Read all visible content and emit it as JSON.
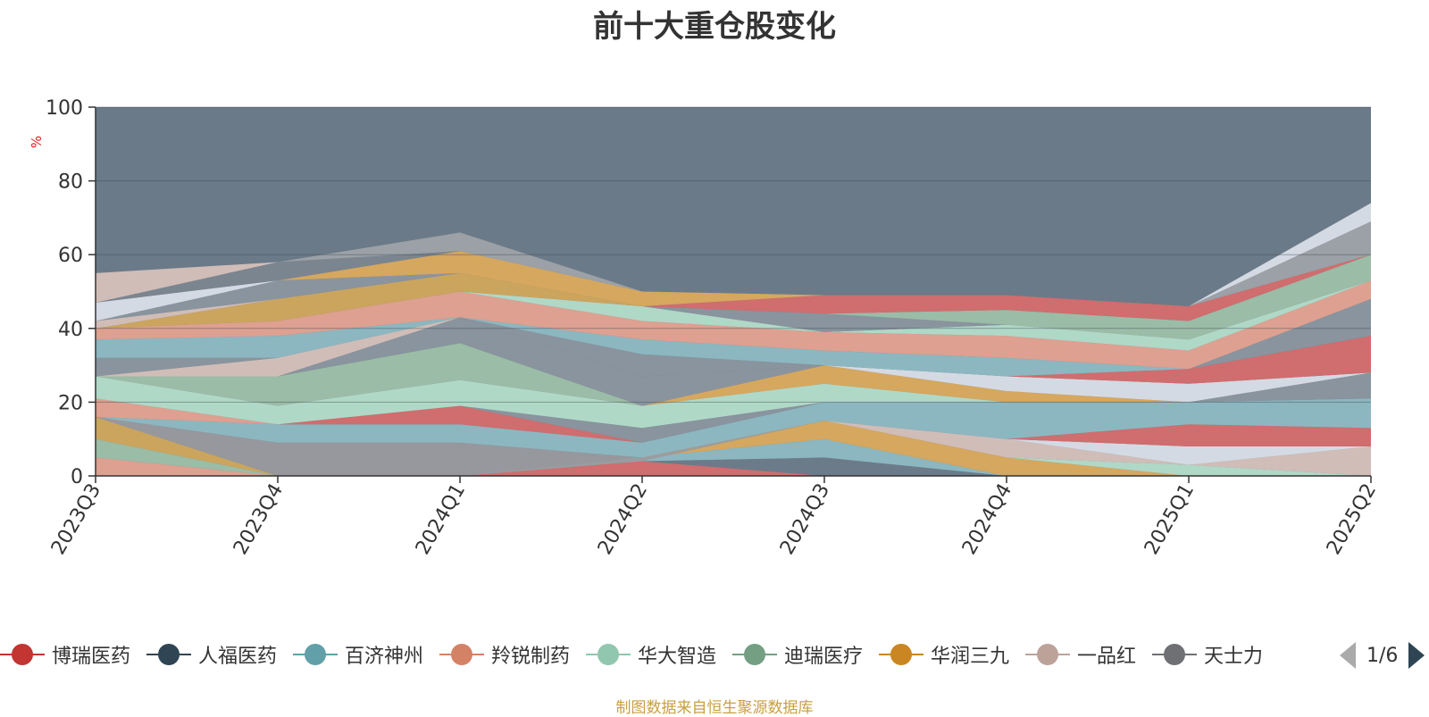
{
  "title": "前十大重仓股变化",
  "source_note": "制图数据来自恒生聚源数据库",
  "pager": {
    "text": "1/6"
  },
  "chart_data": {
    "type": "area",
    "ylabel": "%",
    "ylim": [
      0,
      100
    ],
    "yticks": [
      0,
      20,
      40,
      60,
      80,
      100
    ],
    "categories": [
      "2023Q3",
      "2023Q4",
      "2024Q1",
      "2024Q2",
      "2024Q3",
      "2024Q4",
      "2025Q1",
      "2025Q2"
    ],
    "background_color": "#6b7a88",
    "bands": [
      {
        "color": "#e8a390",
        "lower": [
          0,
          0,
          0,
          4,
          0,
          0,
          0,
          0
        ],
        "upper": [
          5,
          0,
          0,
          4,
          0,
          0,
          0,
          0
        ]
      },
      {
        "color": "#9fc1a8",
        "lower": [
          5,
          0,
          0,
          4,
          0,
          0,
          0,
          0
        ],
        "upper": [
          10,
          0,
          0,
          4,
          0,
          0,
          0,
          0
        ]
      },
      {
        "color": "#d4a85a",
        "lower": [
          10,
          0,
          0,
          4,
          0,
          0,
          0,
          0
        ],
        "upper": [
          16,
          0,
          0,
          4,
          0,
          0,
          0,
          0
        ]
      },
      {
        "color": "#d96b6b",
        "lower": [
          0,
          0,
          0,
          0,
          0,
          0,
          0,
          0
        ],
        "upper": [
          0,
          0,
          0,
          4,
          0,
          0,
          0,
          0
        ]
      },
      {
        "color": "#6d7b8a",
        "lower": [
          0,
          0,
          0,
          4,
          0,
          0,
          0,
          0
        ],
        "upper": [
          0,
          0,
          0,
          4,
          5,
          0,
          0,
          0
        ]
      },
      {
        "color": "#8fbcc4",
        "lower": [
          0,
          0,
          0,
          4,
          5,
          0,
          0,
          0
        ],
        "upper": [
          0,
          0,
          0,
          5,
          10,
          0,
          0,
          0
        ]
      },
      {
        "color": "#e0aa5a",
        "lower": [
          0,
          0,
          0,
          5,
          10,
          0,
          0,
          0
        ],
        "upper": [
          0,
          0,
          0,
          5,
          15,
          5,
          0,
          0
        ]
      },
      {
        "color": "#e8a390",
        "lower": [
          0,
          0,
          0,
          5,
          15,
          5,
          0,
          0
        ],
        "upper": [
          0,
          0,
          0,
          5,
          15,
          5,
          0,
          0
        ]
      },
      {
        "color": "#9a9a9e",
        "lower": [
          16,
          0,
          0,
          4,
          15,
          5,
          0,
          0
        ],
        "upper": [
          16,
          9,
          9,
          5,
          15,
          5,
          0,
          0
        ]
      },
      {
        "color": "#b6e0cc",
        "lower": [
          16,
          9,
          9,
          5,
          15,
          5,
          0,
          0
        ],
        "upper": [
          16,
          9,
          9,
          5,
          15,
          5,
          3,
          0
        ]
      },
      {
        "color": "#d9c2bc",
        "lower": [
          16,
          9,
          9,
          5,
          15,
          5,
          3,
          0
        ],
        "upper": [
          16,
          9,
          9,
          5,
          15,
          10,
          3,
          8
        ]
      },
      {
        "color": "#dde2ea",
        "lower": [
          16,
          9,
          9,
          5,
          15,
          10,
          3,
          8
        ],
        "upper": [
          16,
          9,
          9,
          5,
          15,
          10,
          8,
          8
        ]
      },
      {
        "color": "#d96b6b",
        "lower": [
          16,
          9,
          9,
          5,
          15,
          10,
          8,
          8
        ],
        "upper": [
          16,
          9,
          9,
          5,
          15,
          10,
          14,
          13
        ]
      },
      {
        "color": "#8fbcc4",
        "lower": [
          16,
          9,
          9,
          5,
          15,
          10,
          14,
          13
        ],
        "upper": [
          16,
          14,
          14,
          9,
          20,
          20,
          20,
          21
        ]
      },
      {
        "color": "#d96b6b",
        "lower": [
          16,
          14,
          14,
          9,
          20,
          20,
          20,
          21
        ],
        "upper": [
          16,
          14,
          19,
          9,
          20,
          20,
          20,
          21
        ]
      },
      {
        "color": "#8c96a0",
        "lower": [
          16,
          14,
          19,
          9,
          20,
          20,
          20,
          21
        ],
        "upper": [
          16,
          14,
          19,
          13,
          20,
          20,
          20,
          28
        ]
      },
      {
        "color": "#e8a390",
        "lower": [
          16,
          14,
          19,
          13,
          20,
          20,
          20,
          28
        ],
        "upper": [
          21,
          14,
          19,
          13,
          20,
          20,
          20,
          28
        ]
      },
      {
        "color": "#b6e0cc",
        "lower": [
          21,
          14,
          19,
          13,
          20,
          20,
          20,
          28
        ],
        "upper": [
          27,
          19,
          26,
          19,
          25,
          20,
          20,
          28
        ]
      },
      {
        "color": "#e0aa5a",
        "lower": [
          27,
          19,
          26,
          19,
          25,
          20,
          20,
          28
        ],
        "upper": [
          27,
          19,
          26,
          19,
          30,
          23,
          20,
          28
        ]
      },
      {
        "color": "#dde2ea",
        "lower": [
          27,
          19,
          26,
          19,
          30,
          23,
          20,
          28
        ],
        "upper": [
          27,
          19,
          26,
          19,
          30,
          27,
          25,
          28
        ]
      },
      {
        "color": "#d96b6b",
        "lower": [
          27,
          19,
          26,
          19,
          30,
          27,
          25,
          28
        ],
        "upper": [
          27,
          19,
          26,
          19,
          30,
          27,
          29,
          38
        ]
      },
      {
        "color": "#9fc1a8",
        "lower": [
          27,
          19,
          26,
          19,
          30,
          27,
          29,
          38
        ],
        "upper": [
          27,
          27,
          36,
          19,
          30,
          27,
          29,
          38
        ]
      },
      {
        "color": "#8c96a0",
        "lower": [
          27,
          27,
          36,
          19,
          30,
          27,
          29,
          38
        ],
        "upper": [
          27,
          27,
          43,
          27,
          30,
          27,
          29,
          48
        ]
      },
      {
        "color": "#d9c2bc",
        "lower": [
          27,
          27,
          43,
          27,
          30,
          27,
          29,
          48
        ],
        "upper": [
          27,
          32,
          43,
          27,
          30,
          27,
          29,
          48
        ]
      },
      {
        "color": "#8c96a0",
        "lower": [
          27,
          32,
          43,
          27,
          30,
          27,
          29,
          48
        ],
        "upper": [
          32,
          32,
          43,
          33,
          30,
          27,
          29,
          48
        ]
      },
      {
        "color": "#8fbcc4",
        "lower": [
          32,
          32,
          43,
          33,
          30,
          27,
          29,
          48
        ],
        "upper": [
          37,
          38,
          43,
          37,
          34,
          32,
          29,
          48
        ]
      },
      {
        "color": "#e8a390",
        "lower": [
          37,
          38,
          43,
          37,
          34,
          32,
          29,
          48
        ],
        "upper": [
          40,
          42,
          50,
          42,
          39,
          38,
          34,
          53
        ]
      },
      {
        "color": "#b6e0cc",
        "lower": [
          40,
          42,
          50,
          42,
          39,
          38,
          34,
          53
        ],
        "upper": [
          40,
          42,
          50,
          46,
          39,
          41,
          37,
          53
        ]
      },
      {
        "color": "#d4a85a",
        "lower": [
          40,
          42,
          50,
          46,
          39,
          41,
          37,
          53
        ],
        "upper": [
          40,
          48,
          55,
          46,
          39,
          41,
          37,
          53
        ]
      },
      {
        "color": "#d9c2bc",
        "lower": [
          40,
          48,
          55,
          46,
          39,
          41,
          37,
          53
        ],
        "upper": [
          42,
          48,
          55,
          46,
          39,
          41,
          37,
          53
        ]
      },
      {
        "color": "#8c96a0",
        "lower": [
          42,
          48,
          55,
          46,
          39,
          41,
          37,
          53
        ],
        "upper": [
          42,
          53,
          55,
          46,
          44,
          41,
          37,
          53
        ]
      },
      {
        "color": "#9fc1a8",
        "lower": [
          42,
          53,
          55,
          46,
          44,
          41,
          37,
          53
        ],
        "upper": [
          42,
          53,
          55,
          46,
          44,
          45,
          42,
          60
        ]
      },
      {
        "color": "#d96b6b",
        "lower": [
          42,
          53,
          55,
          46,
          44,
          45,
          42,
          60
        ],
        "upper": [
          42,
          53,
          55,
          46,
          49,
          49,
          46,
          60
        ]
      },
      {
        "color": "#dde2ea",
        "lower": [
          42,
          53,
          55,
          46,
          49,
          49,
          46,
          60
        ],
        "upper": [
          47,
          53,
          55,
          46,
          49,
          49,
          46,
          60
        ]
      },
      {
        "color": "#e0aa5a",
        "lower": [
          47,
          53,
          55,
          46,
          49,
          49,
          46,
          60
        ],
        "upper": [
          47,
          53,
          61,
          50,
          49,
          49,
          46,
          60
        ]
      },
      {
        "color": "#7d8690",
        "lower": [
          47,
          53,
          61,
          50,
          49,
          49,
          46,
          60
        ],
        "upper": [
          47,
          58,
          61,
          50,
          49,
          49,
          46,
          60
        ]
      },
      {
        "color": "#a0a4a8",
        "lower": [
          47,
          58,
          61,
          50,
          49,
          49,
          46,
          60
        ],
        "upper": [
          47,
          58,
          66,
          50,
          49,
          49,
          46,
          69
        ]
      },
      {
        "color": "#dde2ea",
        "lower": [
          47,
          58,
          66,
          50,
          49,
          49,
          46,
          69
        ],
        "upper": [
          47,
          58,
          66,
          50,
          49,
          49,
          46,
          74
        ]
      },
      {
        "color": "#d9c2bc",
        "lower": [
          47,
          58,
          66,
          50,
          49,
          49,
          46,
          74
        ],
        "upper": [
          55,
          58,
          66,
          50,
          49,
          49,
          46,
          74
        ]
      }
    ]
  },
  "legend": {
    "items": [
      {
        "label": "博瑞医药",
        "color": "#c23531"
      },
      {
        "label": "人福医药",
        "color": "#2f4554"
      },
      {
        "label": "百济神州",
        "color": "#61a0a8"
      },
      {
        "label": "羚锐制药",
        "color": "#d48265"
      },
      {
        "label": "华大智造",
        "color": "#91c7ae"
      },
      {
        "label": "迪瑞医疗",
        "color": "#749f83"
      },
      {
        "label": "华润三九",
        "color": "#ca8622"
      },
      {
        "label": "一品红",
        "color": "#bda29a"
      },
      {
        "label": "天士力",
        "color": "#6e7074"
      }
    ]
  }
}
